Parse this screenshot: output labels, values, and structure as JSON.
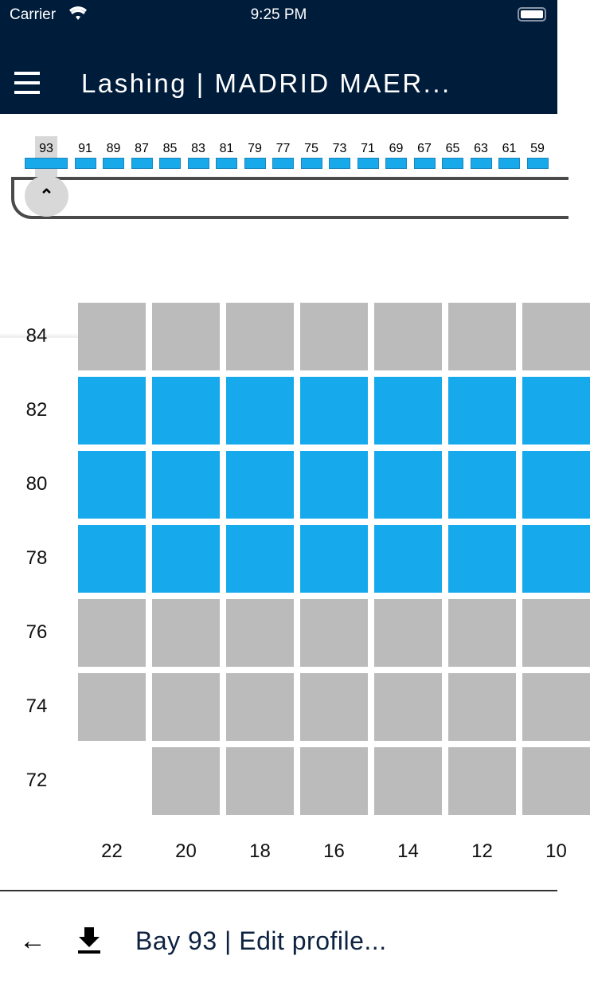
{
  "status_bar": {
    "carrier": "Carrier",
    "time": "9:25 PM"
  },
  "header": {
    "title": "Lashing | MADRID MAER...",
    "menu_icon": "hamburger-icon"
  },
  "bays": {
    "selected": "93",
    "items": [
      "93",
      "91",
      "89",
      "87",
      "85",
      "83",
      "81",
      "79",
      "77",
      "75",
      "73",
      "71",
      "69",
      "67",
      "65",
      "63",
      "61",
      "59"
    ]
  },
  "grid": {
    "rows": [
      "84",
      "82",
      "80",
      "78",
      "76",
      "74",
      "72"
    ],
    "columns": [
      "22",
      "20",
      "18",
      "16",
      "14",
      "12",
      "10"
    ],
    "cells": [
      [
        "gray",
        "gray",
        "gray",
        "gray",
        "gray",
        "gray",
        "gray"
      ],
      [
        "blue",
        "blue",
        "blue",
        "blue",
        "blue",
        "blue",
        "blue"
      ],
      [
        "blue",
        "blue",
        "blue",
        "blue",
        "blue",
        "blue",
        "blue"
      ],
      [
        "blue",
        "blue",
        "blue",
        "blue",
        "blue",
        "blue",
        "blue"
      ],
      [
        "gray",
        "gray",
        "gray",
        "gray",
        "gray",
        "gray",
        "gray"
      ],
      [
        "gray",
        "gray",
        "gray",
        "gray",
        "gray",
        "gray",
        "gray"
      ],
      [
        "empty",
        "gray",
        "gray",
        "gray",
        "gray",
        "gray",
        "gray"
      ]
    ],
    "colors": {
      "blue": "#16aaec",
      "gray": "#bbbbbb",
      "header": "#001c3b"
    }
  },
  "footer": {
    "title": "Bay 93 | Edit profile...",
    "back_icon": "arrow-left-icon",
    "download_icon": "download-icon"
  }
}
